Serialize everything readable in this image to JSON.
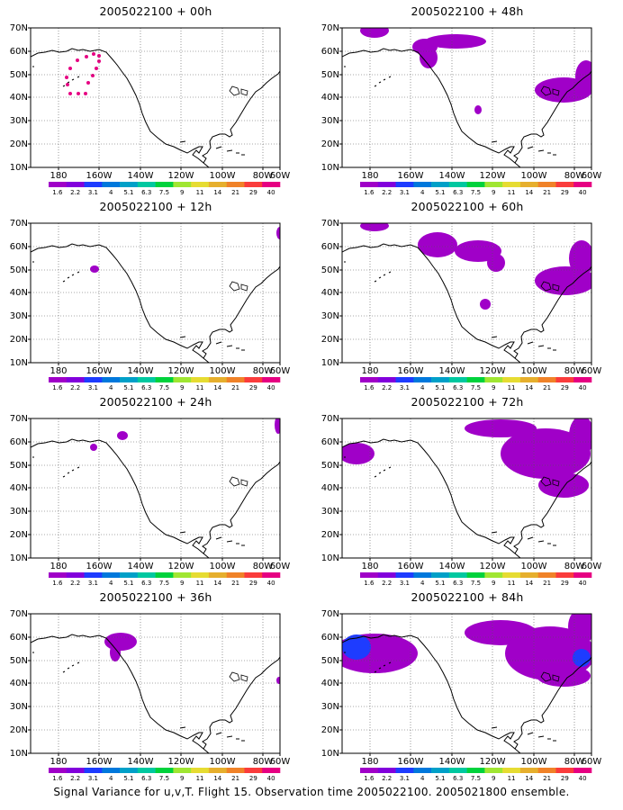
{
  "panels": [
    {
      "title": "2005022100 + 00h"
    },
    {
      "title": "2005022100 + 48h"
    },
    {
      "title": "2005022100 + 12h"
    },
    {
      "title": "2005022100 + 60h"
    },
    {
      "title": "2005022100 + 24h"
    },
    {
      "title": "2005022100 + 72h"
    },
    {
      "title": "2005022100 + 36h"
    },
    {
      "title": "2005022100 + 84h"
    }
  ],
  "map": {
    "lon_labels": [
      "180",
      "160W",
      "140W",
      "120W",
      "100W",
      "80W",
      "60W"
    ],
    "lat_labels": [
      "10N",
      "20N",
      "30N",
      "40N",
      "50N",
      "60N",
      "70N"
    ]
  },
  "colorbar": {
    "labels": [
      "1.6",
      "2.2",
      "3.1",
      "4",
      "5.1",
      "6.3",
      "7.5",
      "9",
      "11",
      "14",
      "21",
      "29",
      "40"
    ],
    "colors": [
      "#a000c8",
      "#8200dc",
      "#1e3cff",
      "#0078dc",
      "#00a0c8",
      "#00c8a0",
      "#00d23c",
      "#a0e632",
      "#e6dc32",
      "#e6af2d",
      "#f08228",
      "#fa3c3c",
      "#e60082"
    ]
  },
  "caption": "Signal Variance for u,v,T. Flight 15. Observation time 2005022100. 2005021800 ensemble."
}
